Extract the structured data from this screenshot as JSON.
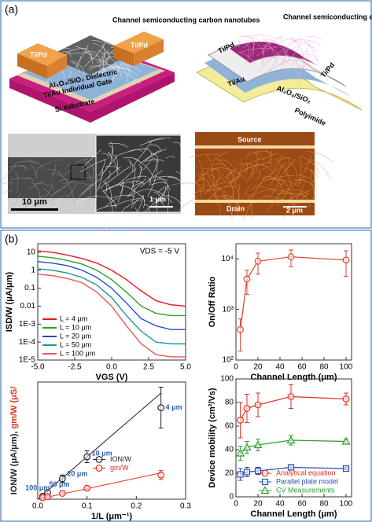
{
  "panel_a": {
    "label": "(a)",
    "schematic": {
      "channel": "Channel semiconducting carbon nanotubes",
      "source": "Ti/Pd",
      "drain": "Ti/Pd",
      "dielectric": "Al₂O₃/SiO₂ Dielectric",
      "gate": "Ti/Au Individual Gate",
      "substrate": "Si substrate"
    },
    "flexible": {
      "channel": "Channel semiconducting carbon nanotubes",
      "left": "Ti/Pd",
      "right": "Ti/Pd",
      "gate": "Ti/Au",
      "dielectric": "Al₂O₃/SiO₂",
      "substrate": "Polyimide"
    },
    "sem": {
      "scale": "10 μm",
      "inset_scale": "1 μm"
    },
    "afm": {
      "source": "Source",
      "drain": "Drain",
      "scale": "2 μm"
    }
  },
  "panel_b": {
    "label": "(b)"
  },
  "chart_data": [
    {
      "type": "line",
      "xlabel": "VGS (V)",
      "ylabel": "ISD/W (μA/μm)",
      "annotation": "VDS = -5 V",
      "x": [
        -5,
        -4,
        -3,
        -2,
        -1,
        0,
        1,
        2,
        3,
        4,
        5
      ],
      "xlim": [
        -5,
        5
      ],
      "xticks": [
        {
          "value": -5,
          "label": "-5.0"
        },
        -2.5,
        {
          "value": 0,
          "label": "0.0"
        },
        2.5,
        {
          "value": 5,
          "label": "5.0"
        }
      ],
      "ylog": true,
      "ylim": [
        1e-05,
        30
      ],
      "yticks": [
        10,
        1,
        0.1,
        0.01,
        {
          "value": 0.001,
          "label": "1E-3"
        },
        {
          "value": 0.0001,
          "label": "1E-4"
        },
        {
          "value": 1e-05,
          "label": "1E-5"
        }
      ],
      "legend": "lower left",
      "series": [
        {
          "name": "L = 4 μm",
          "color": "#e41a1c",
          "values": [
            12,
            10,
            7,
            4.5,
            2.5,
            1,
            0.3,
            0.07,
            0.02,
            0.012,
            0.01
          ]
        },
        {
          "name": "L = 10 μm",
          "color": "#2ca02c",
          "values": [
            6,
            5,
            3.5,
            2.2,
            1,
            0.3,
            0.06,
            0.01,
            0.004,
            0.003,
            0.003
          ]
        },
        {
          "name": "L = 20 μm",
          "color": "#1f4fbf",
          "values": [
            3,
            2.5,
            1.8,
            1,
            0.4,
            0.1,
            0.015,
            0.002,
            0.0008,
            0.0005,
            0.0005
          ]
        },
        {
          "name": "L = 50 μm",
          "color": "#1a9a9a",
          "values": [
            1.2,
            1,
            0.7,
            0.4,
            0.15,
            0.03,
            0.003,
            0.0004,
            0.0001,
            8e-05,
            8e-05
          ]
        },
        {
          "name": "L = 100 μm",
          "color": "#e05a5a",
          "values": [
            0.6,
            0.5,
            0.35,
            0.2,
            0.06,
            0.01,
            0.0008,
            8e-05,
            2e-05,
            1.5e-05,
            1.5e-05
          ]
        }
      ]
    },
    {
      "type": "scatter",
      "xlabel": "Channel Length (μm)",
      "ylabel": "On/Off Ratio",
      "x": [
        4,
        10,
        20,
        50,
        100
      ],
      "xlim": [
        0,
        105
      ],
      "xticks": [
        0,
        20,
        40,
        60,
        80,
        100
      ],
      "ylog": true,
      "ylim": [
        100,
        20000
      ],
      "yticks": [
        {
          "value": 100,
          "label": "10²"
        },
        {
          "value": 1000,
          "label": "10³"
        },
        {
          "value": 10000,
          "label": "10⁴"
        }
      ],
      "series": [
        {
          "color": "#d9452f",
          "marker": "circle",
          "connect": true,
          "values": [
            400,
            4000,
            9000,
            11000,
            9500
          ],
          "errors": [
            250,
            2000,
            4000,
            4000,
            5000
          ]
        }
      ]
    },
    {
      "type": "scatter",
      "xlabel": "1/L (μm⁻¹)",
      "ylabel": [
        "ION/W (μA/μm),",
        " gm/W (μS/"
      ],
      "x": [
        0.01,
        0.02,
        0.05,
        0.1,
        0.25
      ],
      "xlim": [
        0,
        0.3
      ],
      "xticks": [
        {
          "value": 0,
          "label": "0.0"
        },
        0.1,
        0.2,
        0.3
      ],
      "ylim": [
        0,
        16
      ],
      "legend": "center right",
      "series": [
        {
          "name": "ION/W",
          "color": "#222222",
          "marker": "circle",
          "values": [
            0.4,
            0.9,
            2.8,
            5.8,
            12.5
          ],
          "errors": [
            0.2,
            0.3,
            0.5,
            0.8,
            2.8
          ],
          "labels": [
            "100 μm",
            "50 μm",
            "20 μm",
            "10 μm",
            "4 μm"
          ],
          "label_color": "#2a5db0"
        },
        {
          "name": "gm/W",
          "color": "#e0301e",
          "marker": "circle",
          "values": [
            0.2,
            0.35,
            0.8,
            1.5,
            3.3
          ],
          "errors": [
            0.1,
            0.1,
            0.15,
            0.2,
            0.6
          ]
        }
      ],
      "fits": [
        {
          "color": "#222222",
          "x": [
            0,
            0.25
          ],
          "values": [
            0,
            14.5
          ]
        },
        {
          "color": "#e0301e",
          "x": [
            0,
            0.25
          ],
          "values": [
            0,
            3.6
          ]
        }
      ]
    },
    {
      "type": "scatter",
      "xlabel": "Channel Length (μm)",
      "ylabel": "Device mobility (cm²/Vs)",
      "x": [
        4,
        10,
        20,
        50,
        100
      ],
      "xlim": [
        0,
        105
      ],
      "xticks": [
        0,
        20,
        40,
        60,
        80,
        100
      ],
      "ylim": [
        0,
        100
      ],
      "yticks": [
        0,
        20,
        40,
        60,
        80,
        100
      ],
      "legend": "lower right",
      "series": [
        {
          "name": "Analytical equation",
          "color": "#e0301e",
          "marker": "circle",
          "connect": true,
          "values": [
            65,
            75,
            78,
            85,
            83
          ],
          "errors": [
            15,
            12,
            10,
            10,
            5
          ]
        },
        {
          "name": "Parallel plate model",
          "color": "#2a4fa8",
          "marker": "square",
          "connect": true,
          "values": [
            19,
            21,
            22,
            25,
            24
          ],
          "errors": [
            5,
            4,
            3,
            2,
            1
          ]
        },
        {
          "name": "CV Measurements",
          "color": "#2ca02c",
          "marker": "triangle",
          "connect": true,
          "values": [
            37,
            42,
            44,
            48,
            47
          ],
          "errors": [
            6,
            5,
            5,
            4,
            2
          ]
        }
      ]
    }
  ]
}
